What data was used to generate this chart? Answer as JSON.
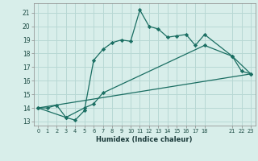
{
  "title": "",
  "xlabel": "Humidex (Indice chaleur)",
  "ylabel": "",
  "background_color": "#d8eeea",
  "grid_color": "#b8d8d4",
  "line_color": "#1a6e62",
  "xlim": [
    -0.5,
    23.5
  ],
  "ylim": [
    12.7,
    21.7
  ],
  "yticks": [
    13,
    14,
    15,
    16,
    17,
    18,
    19,
    20,
    21
  ],
  "xticks": [
    0,
    1,
    2,
    3,
    4,
    5,
    6,
    7,
    8,
    9,
    10,
    11,
    12,
    13,
    14,
    15,
    16,
    17,
    18,
    21,
    22,
    23
  ],
  "xtick_labels": [
    "0",
    "1",
    "2",
    "3",
    "4",
    "5",
    "6",
    "7",
    "8",
    "9",
    "10",
    "11",
    "12",
    "13",
    "14",
    "15",
    "16",
    "17",
    "18",
    "21",
    "22",
    "23"
  ],
  "line1_x": [
    0,
    1,
    2,
    3,
    4,
    5,
    6,
    7,
    8,
    9,
    10,
    11,
    12,
    13,
    14,
    15,
    16,
    17,
    18,
    21,
    22,
    23
  ],
  "line1_y": [
    14.0,
    14.0,
    14.2,
    13.3,
    13.1,
    13.8,
    17.5,
    18.3,
    18.8,
    19.0,
    18.9,
    21.2,
    20.0,
    19.8,
    19.2,
    19.3,
    19.4,
    18.6,
    19.4,
    17.8,
    16.7,
    16.5
  ],
  "line2_x": [
    0,
    3,
    5,
    6,
    7,
    18,
    21,
    23
  ],
  "line2_y": [
    14.0,
    13.3,
    14.0,
    14.3,
    15.1,
    18.6,
    17.8,
    16.5
  ],
  "line3_x": [
    0,
    23
  ],
  "line3_y": [
    14.0,
    16.5
  ]
}
